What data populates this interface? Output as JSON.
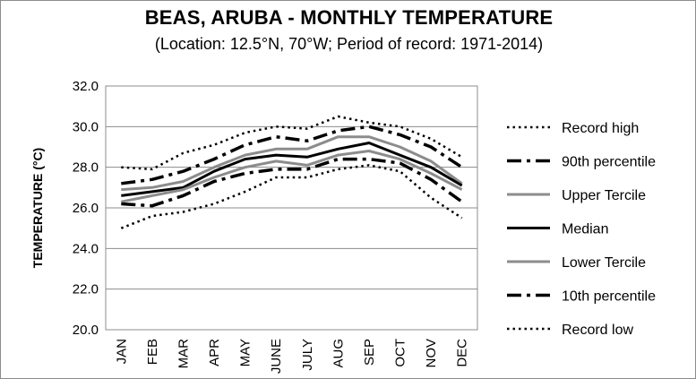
{
  "chart_data": {
    "type": "line",
    "title": "BEAS, ARUBA - MONTHLY TEMPERATURE",
    "subtitle": "(Location: 12.5°N, 70°W; Period of record: 1971-2014)",
    "xlabel": "",
    "ylabel": "TEMPERATURE (°C)",
    "ylim": [
      20,
      32
    ],
    "yticks": [
      "20.0",
      "22.0",
      "24.0",
      "26.0",
      "28.0",
      "30.0",
      "32.0"
    ],
    "categories": [
      "JAN",
      "FEB",
      "MAR",
      "APR",
      "MAY",
      "JUNE",
      "JULY",
      "AUG",
      "SEP",
      "OCT",
      "NOV",
      "DEC"
    ],
    "grid": true,
    "legend_position": "right",
    "series": [
      {
        "name": "Record high",
        "style": "dotted",
        "color": "#000000",
        "values": [
          28.0,
          27.9,
          28.7,
          29.1,
          29.7,
          30.0,
          29.9,
          30.5,
          30.2,
          30.0,
          29.4,
          28.5
        ]
      },
      {
        "name": "90th percentile",
        "style": "dashdot",
        "color": "#000000",
        "values": [
          27.2,
          27.4,
          27.8,
          28.4,
          29.1,
          29.5,
          29.3,
          29.8,
          30.0,
          29.6,
          29.0,
          28.0
        ]
      },
      {
        "name": "Upper Tercile",
        "style": "solid",
        "color": "#8c8c8c",
        "values": [
          26.9,
          27.0,
          27.3,
          28.0,
          28.6,
          28.9,
          28.9,
          29.5,
          29.5,
          29.0,
          28.3,
          27.2
        ]
      },
      {
        "name": "Median",
        "style": "solid",
        "color": "#000000",
        "values": [
          26.6,
          26.8,
          27.0,
          27.8,
          28.4,
          28.6,
          28.5,
          28.9,
          29.2,
          28.6,
          28.0,
          27.1
        ]
      },
      {
        "name": "Lower Tercile",
        "style": "solid",
        "color": "#8c8c8c",
        "values": [
          26.3,
          26.6,
          26.9,
          27.5,
          28.0,
          28.3,
          28.1,
          28.6,
          28.8,
          28.4,
          27.7,
          26.9
        ]
      },
      {
        "name": "10th percentile",
        "style": "dashdot",
        "color": "#000000",
        "values": [
          26.2,
          26.1,
          26.6,
          27.3,
          27.7,
          27.9,
          27.9,
          28.4,
          28.4,
          28.2,
          27.4,
          26.3
        ]
      },
      {
        "name": "Record low",
        "style": "dotted",
        "color": "#000000",
        "values": [
          25.0,
          25.6,
          25.8,
          26.2,
          26.8,
          27.5,
          27.5,
          27.9,
          28.1,
          27.8,
          26.5,
          25.5
        ]
      }
    ]
  }
}
